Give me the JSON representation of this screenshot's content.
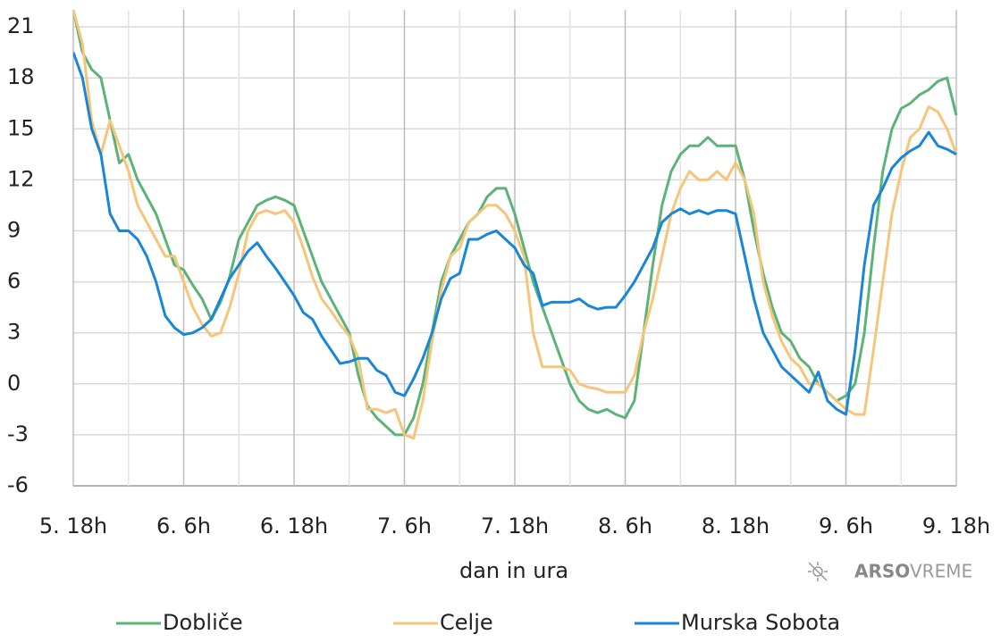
{
  "chart_data": {
    "type": "line",
    "x_label": "dan in ura",
    "logo": {
      "brand": "ARSO",
      "product": "VREME"
    },
    "x": [
      0,
      1,
      2,
      3,
      4,
      5,
      6,
      7,
      8,
      9,
      10,
      11,
      12,
      13,
      14,
      15,
      16,
      17,
      18,
      19,
      20,
      21,
      22,
      23,
      24,
      25,
      26,
      27,
      28,
      29,
      30,
      31,
      32,
      33,
      34,
      35,
      36,
      37,
      38,
      39,
      40,
      41,
      42,
      43,
      44,
      45,
      46,
      47,
      48,
      49,
      50,
      51,
      52,
      53,
      54,
      55,
      56,
      57,
      58,
      59,
      60,
      61,
      62,
      63,
      64,
      65,
      66,
      67,
      68,
      69,
      70,
      71,
      72,
      73,
      74,
      75,
      76,
      77,
      78,
      79,
      80,
      81,
      82,
      83,
      84,
      85,
      86,
      87,
      88,
      89,
      90,
      91,
      92,
      93,
      94,
      95,
      96
    ],
    "xlim": [
      0,
      96
    ],
    "xticks": [
      {
        "value": 0,
        "label": "5. 18h"
      },
      {
        "value": 12,
        "label": "6. 6h"
      },
      {
        "value": 24,
        "label": "6. 18h"
      },
      {
        "value": 36,
        "label": "7. 6h"
      },
      {
        "value": 48,
        "label": "7. 18h"
      },
      {
        "value": 60,
        "label": "8. 6h"
      },
      {
        "value": 72,
        "label": "8. 18h"
      },
      {
        "value": 84,
        "label": "9. 6h"
      },
      {
        "value": 96,
        "label": "9. 18h"
      }
    ],
    "xticks_minor": [
      6,
      18,
      30,
      42,
      54,
      66,
      78,
      90
    ],
    "ylim": [
      -6,
      22
    ],
    "yticks": [
      -6,
      -3,
      0,
      3,
      6,
      9,
      12,
      15,
      18,
      21
    ],
    "grid": true,
    "legend": "bottom",
    "series": [
      {
        "name": "Dobliče",
        "color": "#5cb377",
        "values": [
          22,
          19.5,
          18.5,
          18,
          15.5,
          13,
          13.5,
          12,
          11,
          10,
          8.5,
          7,
          6.7,
          5.8,
          5,
          3.8,
          4.8,
          6.3,
          8.5,
          9.5,
          10.5,
          10.8,
          11,
          10.8,
          10.5,
          9,
          7.5,
          6,
          5,
          4,
          3,
          0.5,
          -1.3,
          -2,
          -2.5,
          -3,
          -3,
          -2,
          0,
          3,
          6,
          7.5,
          8.5,
          9.5,
          10,
          11,
          11.5,
          11.5,
          10,
          8,
          6,
          4.5,
          3,
          1.5,
          0,
          -1,
          -1.5,
          -1.7,
          -1.5,
          -1.8,
          -2,
          -1,
          3,
          7,
          10.5,
          12.5,
          13.5,
          14,
          14,
          14.5,
          14,
          14,
          14,
          12,
          9,
          6.5,
          4.5,
          3,
          2.5,
          1.5,
          1,
          0,
          -0.5,
          -1,
          -0.7,
          0,
          3,
          8,
          12.5,
          15,
          16.2,
          16.5,
          17,
          17.3,
          17.8,
          18,
          15.8
        ]
      },
      {
        "name": "Celje",
        "color": "#f5c57a",
        "values": [
          22,
          20,
          15.5,
          13.5,
          15.5,
          14,
          12.5,
          10.5,
          9.5,
          8.5,
          7.5,
          7.5,
          6,
          4.5,
          3.5,
          2.8,
          3,
          4.5,
          6.5,
          9,
          10,
          10.2,
          10,
          10.2,
          9.5,
          8,
          6.3,
          5,
          4.3,
          3.5,
          2.8,
          1.5,
          -1.5,
          -1.5,
          -1.7,
          -1.5,
          -3,
          -3.2,
          -1,
          2.5,
          5.5,
          7.5,
          8,
          9.5,
          10,
          10.5,
          10.5,
          10,
          9,
          7.5,
          3,
          1,
          1,
          1,
          0.8,
          0,
          -0.2,
          -0.3,
          -0.5,
          -0.5,
          -0.5,
          0.5,
          3,
          5,
          7.5,
          10,
          11.5,
          12.5,
          12,
          12,
          12.5,
          12,
          13,
          12,
          10,
          6,
          4,
          2.5,
          1.5,
          1,
          0,
          0,
          -0.5,
          -1,
          -1.5,
          -1.8,
          -1.8,
          2,
          6,
          10,
          12.5,
          14.5,
          15,
          16.3,
          16,
          15,
          13.5
        ]
      },
      {
        "name": "Murska Sobota",
        "color": "#1a86d6",
        "values": [
          19.5,
          18,
          15,
          13.5,
          10,
          9,
          9,
          8.5,
          7.5,
          6,
          4,
          3.3,
          2.9,
          3,
          3.3,
          3.8,
          5,
          6.2,
          7,
          7.8,
          8.3,
          7.5,
          6.8,
          6,
          5.2,
          4.2,
          3.8,
          2.8,
          2,
          1.2,
          1.3,
          1.5,
          1.5,
          0.8,
          0.5,
          -0.5,
          -0.7,
          0.3,
          1.5,
          3,
          5,
          6.2,
          6.5,
          8.5,
          8.5,
          8.8,
          9,
          8.5,
          8,
          7,
          6.5,
          4.6,
          4.8,
          4.8,
          4.8,
          5,
          4.6,
          4.4,
          4.5,
          4.5,
          5.2,
          6,
          7,
          8,
          9.5,
          10,
          10.3,
          10,
          10.2,
          10,
          10.2,
          10.2,
          10,
          7.5,
          5,
          3,
          2,
          1,
          0.5,
          0,
          -0.5,
          0.7,
          -1,
          -1.5,
          -1.8,
          2,
          7,
          10.5,
          11.5,
          12.7,
          13.3,
          13.7,
          14,
          14.8,
          14,
          13.8,
          13.5
        ]
      }
    ]
  }
}
